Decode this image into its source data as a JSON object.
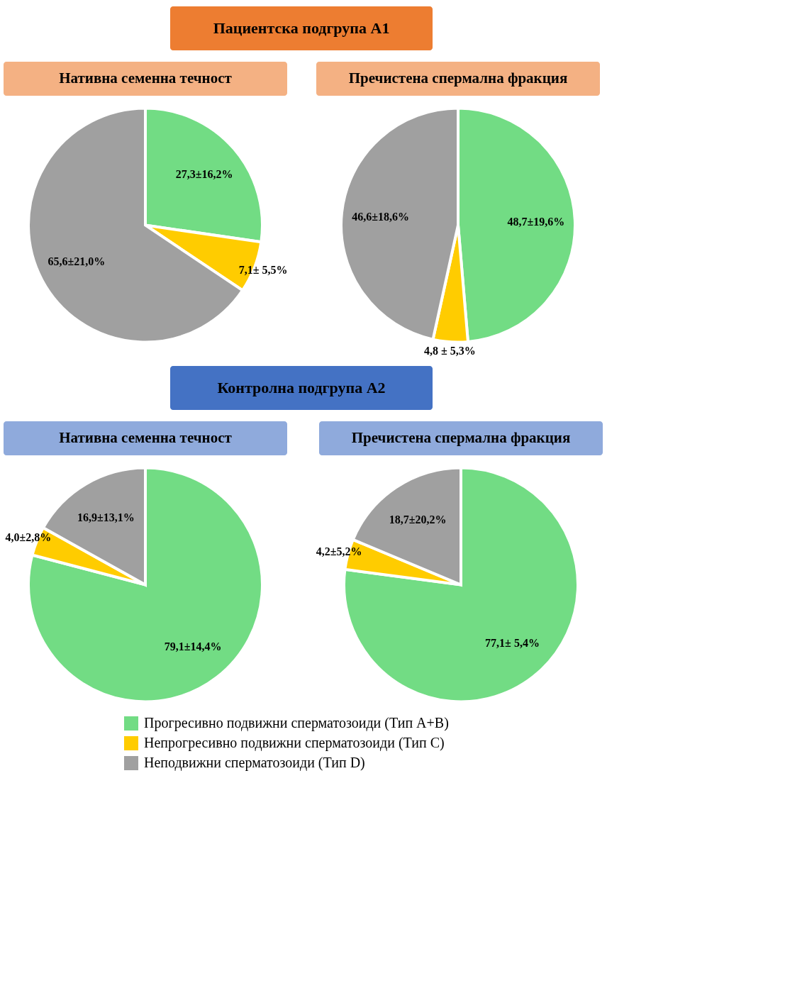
{
  "chart_data": [
    {
      "type": "pie",
      "title": "Нативна семенна течност",
      "annotations": [
        "Пациентска подгрупа А1"
      ],
      "legend": "bottom",
      "categories": [
        "Прогресивно подвижни сперматозоиди (Тип А+В)",
        "Непрогресивно подвижни сперматозоиди (Тип С)",
        "Неподвижни сперматозоиди (Тип D)"
      ],
      "values": [
        27.3,
        7.1,
        65.6
      ],
      "value_labels": [
        "27,3±16,2%",
        "7,1± 5,5%",
        "65,6±21,0%"
      ],
      "colors": [
        "#72dc84",
        "#ffcc00",
        "#a0a0a0"
      ]
    },
    {
      "type": "pie",
      "title": "Пречистена спермална фракция",
      "categories": [
        null,
        null,
        null
      ],
      "values": [
        48.7,
        4.8,
        46.6
      ],
      "value_labels": [
        "48,7±19,6%",
        "4,8 ± 5,3%",
        "46,6±18,6%"
      ],
      "colors": [
        "#72dc84",
        "#ffcc00",
        "#a0a0a0"
      ]
    },
    {
      "type": "pie",
      "title": "Нативна семенна течност",
      "annotations": [
        "Контролна подгрупа А2"
      ],
      "categories": [
        null,
        null,
        null
      ],
      "values": [
        79.1,
        4.0,
        16.9
      ],
      "value_labels": [
        "79,1±14,4%",
        "4,0±2,8%",
        "16,9±13,1%"
      ],
      "colors": [
        "#72dc84",
        "#ffcc00",
        "#a0a0a0"
      ]
    },
    {
      "type": "pie",
      "title": "Пречистена спермална фракция",
      "categories": [
        null,
        null,
        null
      ],
      "values": [
        77.1,
        4.2,
        18.7
      ],
      "value_labels": [
        "77,1± 5,4%",
        "4,2±5,2%",
        "18,7±20,2%"
      ],
      "colors": [
        "#72dc84",
        "#ffcc00",
        "#a0a0a0"
      ]
    }
  ]
}
